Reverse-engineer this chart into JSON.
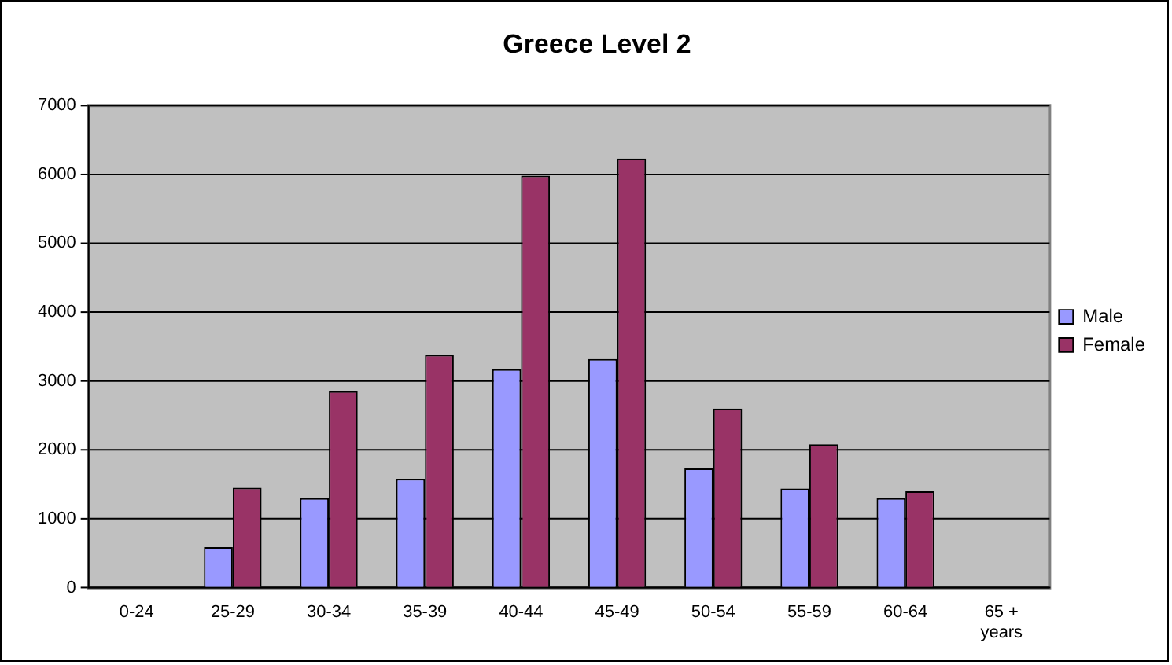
{
  "chart_data": {
    "type": "bar",
    "title": "Greece Level 2",
    "categories": [
      "0-24",
      "25-29",
      "30-34",
      "35-39",
      "40-44",
      "45-49",
      "50-54",
      "55-59",
      "60-64",
      "65 + years"
    ],
    "series": [
      {
        "name": "Male",
        "color": "#9999ff",
        "values": [
          null,
          590,
          1300,
          1580,
          3170,
          3320,
          1730,
          1440,
          1300,
          null
        ]
      },
      {
        "name": "Female",
        "color": "#993366",
        "values": [
          null,
          1450,
          2850,
          3380,
          5980,
          6230,
          2600,
          2080,
          1400,
          null
        ]
      }
    ],
    "ylim": [
      0,
      7000
    ],
    "yticks": [
      0,
      1000,
      2000,
      3000,
      4000,
      5000,
      6000,
      7000
    ],
    "grid": "y",
    "legend": "right"
  }
}
